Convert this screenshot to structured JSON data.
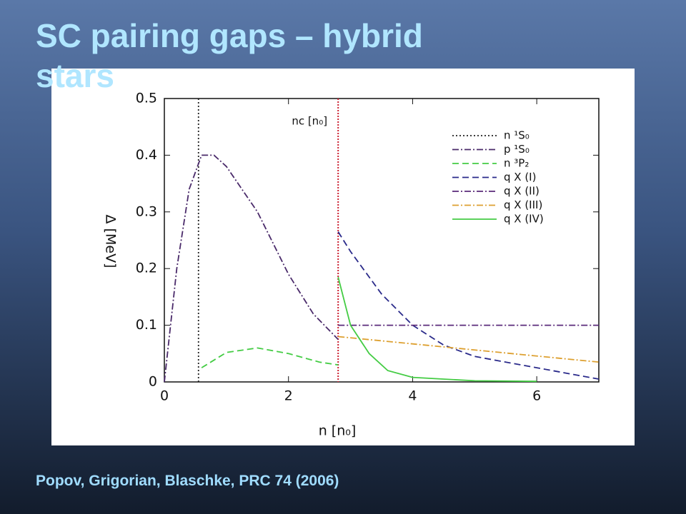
{
  "title": "SC pairing gaps – hybrid stars",
  "citation": "Popov, Grigorian, Blaschke, PRC 74 (2006)",
  "chart_data": {
    "type": "line",
    "xlabel": "n [n₀]",
    "ylabel": "Δ [MeV]",
    "xlim": [
      0,
      7
    ],
    "xticks": [
      0,
      2,
      4,
      6
    ],
    "ylim": [
      0,
      0.5
    ],
    "yticks": [
      0,
      0.1,
      0.2,
      0.3,
      0.4,
      0.5
    ],
    "grid": false,
    "legend": "upper right",
    "annotation": {
      "text": "nc [n₀]",
      "x": 2.8,
      "color": "#cc2233"
    },
    "series": [
      {
        "name": "n ¹S₀",
        "color": "#222222",
        "linestyle": "dotted",
        "x": [
          0.55,
          0.55
        ],
        "values": [
          0.5,
          0
        ]
      },
      {
        "name": "p ¹S₀",
        "color": "#4a2a6a",
        "linestyle": "dashdot",
        "x": [
          0,
          0.2,
          0.4,
          0.6,
          0.8,
          1.0,
          1.5,
          2.0,
          2.4,
          2.8
        ],
        "values": [
          0,
          0.2,
          0.34,
          0.4,
          0.4,
          0.38,
          0.3,
          0.19,
          0.12,
          0.075
        ]
      },
      {
        "name": "n ³P₂",
        "color": "#44cc44",
        "linestyle": "dashed",
        "x": [
          0.6,
          1.0,
          1.5,
          2.0,
          2.5,
          2.8
        ],
        "values": [
          0.025,
          0.052,
          0.06,
          0.05,
          0.035,
          0.03
        ]
      },
      {
        "name": "q X (I)",
        "color": "#2a2a8a",
        "linestyle": "dashed",
        "x": [
          2.8,
          3.0,
          3.5,
          4.0,
          4.5,
          5.0,
          6.0,
          7.0
        ],
        "values": [
          0.265,
          0.23,
          0.155,
          0.1,
          0.065,
          0.045,
          0.025,
          0.005
        ]
      },
      {
        "name": "q X (II)",
        "color": "#5a2a7a",
        "linestyle": "dashdot",
        "x": [
          2.8,
          7.0
        ],
        "values": [
          0.1,
          0.1
        ]
      },
      {
        "name": "q X (III)",
        "color": "#dda030",
        "linestyle": "dashdot",
        "x": [
          2.8,
          7.0
        ],
        "values": [
          0.08,
          0.035
        ]
      },
      {
        "name": "q X (IV)",
        "color": "#44cc44",
        "linestyle": "solid",
        "x": [
          2.8,
          3.0,
          3.3,
          3.6,
          4.0,
          5.0,
          6.0
        ],
        "values": [
          0.185,
          0.1,
          0.05,
          0.02,
          0.008,
          0.002,
          0.001
        ]
      }
    ]
  }
}
